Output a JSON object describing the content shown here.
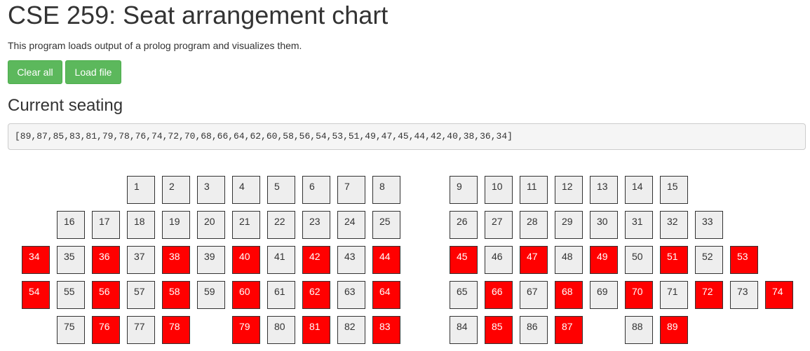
{
  "title": "CSE 259: Seat arrangement chart",
  "description": "This program loads output of a prolog program and visualizes them.",
  "buttons": {
    "clear_label": "Clear all",
    "load_label": "Load file"
  },
  "section_title": "Current seating",
  "seating_text": "[89,87,85,83,81,79,78,76,74,72,70,68,66,64,62,60,58,56,54,53,51,49,47,45,44,42,40,38,36,34]",
  "colors": {
    "occupied": "#ff0000",
    "empty": "#eeeeee",
    "button": "#5cb85c"
  },
  "occupied": [
    89,
    87,
    85,
    83,
    81,
    79,
    78,
    76,
    74,
    72,
    70,
    68,
    66,
    64,
    62,
    60,
    58,
    56,
    54,
    53,
    51,
    49,
    47,
    45,
    44,
    42,
    40,
    38,
    36,
    34
  ],
  "rows": [
    {
      "left": [
        null,
        null,
        null,
        1,
        2,
        3,
        4,
        5,
        6,
        7,
        8
      ],
      "right": [
        9,
        10,
        11,
        12,
        13,
        14,
        15,
        null,
        null,
        null
      ]
    },
    {
      "left": [
        null,
        16,
        17,
        18,
        19,
        20,
        21,
        22,
        23,
        24,
        25
      ],
      "right": [
        26,
        27,
        28,
        29,
        30,
        31,
        32,
        33,
        null,
        null
      ]
    },
    {
      "left": [
        34,
        35,
        36,
        37,
        38,
        39,
        40,
        41,
        42,
        43,
        44
      ],
      "right": [
        45,
        46,
        47,
        48,
        49,
        50,
        51,
        52,
        53,
        null
      ]
    },
    {
      "left": [
        54,
        55,
        56,
        57,
        58,
        59,
        60,
        61,
        62,
        63,
        64
      ],
      "right": [
        65,
        66,
        67,
        68,
        69,
        70,
        71,
        72,
        73,
        74
      ]
    },
    {
      "left": [
        null,
        75,
        76,
        77,
        78,
        null,
        79,
        80,
        81,
        82,
        83
      ],
      "right": [
        84,
        85,
        86,
        87,
        null,
        88,
        89,
        null,
        null,
        null
      ]
    }
  ]
}
